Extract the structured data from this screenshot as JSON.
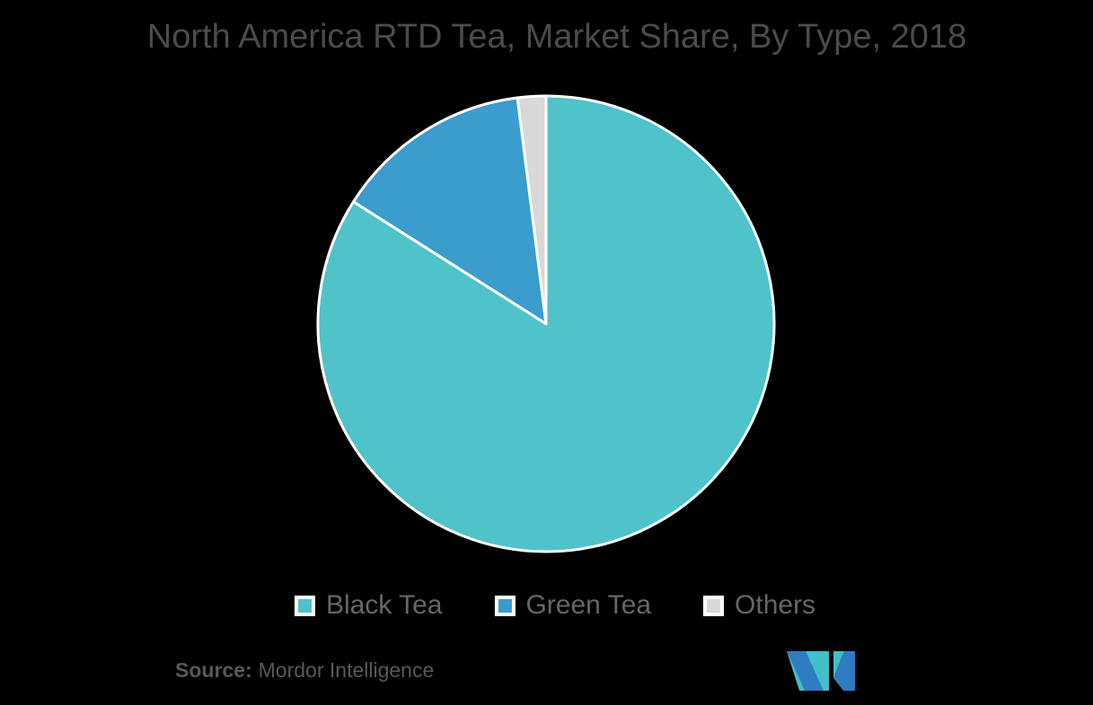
{
  "background": "#000000",
  "title": "North America RTD Tea, Market Share, By Type, 2018",
  "chart_data": {
    "type": "pie",
    "title": "North America RTD Tea, Market Share, By Type, 2018",
    "categories": [
      "Black Tea",
      "Green Tea",
      "Others"
    ],
    "values": [
      84,
      14,
      2
    ],
    "unit": "percent",
    "colors": [
      "#4FC3C9",
      "#3B9CCE",
      "#D8D8D8"
    ],
    "start_angle_deg": 0,
    "direction": "clockwise",
    "slice_border_color": "#FFFFFF",
    "legend_position": "bottom",
    "data_labels_shown": false
  },
  "legend": {
    "items": [
      {
        "label": "Black Tea",
        "color": "#4FC3C9"
      },
      {
        "label": "Green Tea",
        "color": "#3B9CCE"
      },
      {
        "label": "Others",
        "color": "#D8D8D8"
      }
    ]
  },
  "source": {
    "label": "Source:",
    "text": "Mordor Intelligence"
  },
  "logo": {
    "name": "mordor-intelligence-logo",
    "blue": "#2E7DC1",
    "teal": "#42BFC8"
  },
  "text_colors": {
    "title": "#4B4B4E",
    "legend": "#666669",
    "source": "#58595B"
  }
}
